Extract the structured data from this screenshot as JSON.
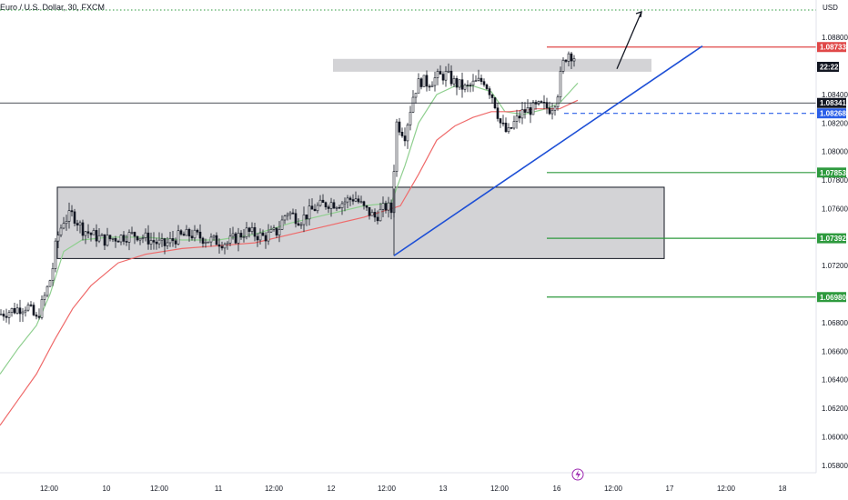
{
  "header": {
    "title": "Euro / U.S. Dollar, 30, FXCM"
  },
  "axis": {
    "currency": "USD",
    "clock": "22:22"
  },
  "colors": {
    "up": "#131722",
    "down": "#131722",
    "ma_fast": "#8fcf8f",
    "ma_slow": "#ef6a6a",
    "resistance": "#e04848",
    "target": "#2e9a3e",
    "trendline": "#1d4fd6",
    "current": "#131722",
    "dashed": "#2a5ee8",
    "zone_fill": "#d3d3d6",
    "zone_border": "#131722"
  },
  "chart_data": {
    "type": "candlestick",
    "title": "Euro / U.S. Dollar, 30, FXCM",
    "ylim": [
      1.0578,
      1.0898
    ],
    "y_ticks": [
      "1.08800",
      "1.08400",
      "1.08200",
      "1.08000",
      "1.07800",
      "1.07600",
      "1.07200",
      "1.06800",
      "1.06600",
      "1.06400",
      "1.06200",
      "1.06000",
      "1.05800"
    ],
    "x_ticks": [
      "12:00",
      "10",
      "12:00",
      "11",
      "12:00",
      "12",
      "12:00",
      "13",
      "12:00",
      "16",
      "12:00",
      "17",
      "12:00",
      "18"
    ],
    "price_levels": [
      {
        "price": 1.08733,
        "label": "1.08733",
        "kind": "resistance"
      },
      {
        "price": 1.08341,
        "label": "1.08341",
        "kind": "current"
      },
      {
        "price": 1.08268,
        "label": "1.08268",
        "kind": "dashed"
      },
      {
        "price": 1.07853,
        "label": "1.07853",
        "kind": "target"
      },
      {
        "price": 1.07392,
        "label": "1.07392",
        "kind": "target"
      },
      {
        "price": 1.0698,
        "label": "1.06980",
        "kind": "target"
      }
    ],
    "zones": [
      {
        "name": "range-box",
        "x_start": 63,
        "x_end": 730,
        "y_top": 1.0775,
        "y_bottom": 1.0725
      },
      {
        "name": "supply-zone",
        "x_start": 366,
        "x_end": 716,
        "y_top": 1.0865,
        "y_bottom": 1.0856
      }
    ],
    "trendline": {
      "x1": 433,
      "y1": 1.0727,
      "x2": 772,
      "y2": 1.0874
    },
    "projection": {
      "x1": 678,
      "y1": 1.0858,
      "x2": 705,
      "y2": 1.0898
    },
    "candle_path": [
      [
        0,
        1.0686
      ],
      [
        10,
        1.0688
      ],
      [
        20,
        1.069
      ],
      [
        30,
        1.0692
      ],
      [
        40,
        1.0682
      ],
      [
        50,
        1.07
      ],
      [
        57,
        1.0714
      ],
      [
        62,
        1.0738
      ],
      [
        70,
        1.0752
      ],
      [
        80,
        1.0756
      ],
      [
        90,
        1.0746
      ],
      [
        100,
        1.0742
      ],
      [
        115,
        1.0738
      ],
      [
        130,
        1.074
      ],
      [
        150,
        1.0742
      ],
      [
        165,
        1.0738
      ],
      [
        180,
        1.0734
      ],
      [
        195,
        1.074
      ],
      [
        210,
        1.0742
      ],
      [
        230,
        1.0738
      ],
      [
        250,
        1.0736
      ],
      [
        270,
        1.0744
      ],
      [
        290,
        1.074
      ],
      [
        305,
        1.0744
      ],
      [
        315,
        1.0758
      ],
      [
        330,
        1.0752
      ],
      [
        345,
        1.076
      ],
      [
        360,
        1.0764
      ],
      [
        375,
        1.0764
      ],
      [
        390,
        1.0768
      ],
      [
        400,
        1.076
      ],
      [
        412,
        1.0754
      ],
      [
        425,
        1.0762
      ],
      [
        430,
        1.0758
      ],
      [
        436,
        1.082
      ],
      [
        445,
        1.0812
      ],
      [
        455,
        1.0842
      ],
      [
        462,
        1.085
      ],
      [
        470,
        1.0848
      ],
      [
        480,
        1.0852
      ],
      [
        490,
        1.0854
      ],
      [
        500,
        1.0848
      ],
      [
        512,
        1.0844
      ],
      [
        522,
        1.0848
      ],
      [
        532,
        1.085
      ],
      [
        542,
        1.0838
      ],
      [
        550,
        1.082
      ],
      [
        558,
        1.0812
      ],
      [
        565,
        1.082
      ],
      [
        575,
        1.0828
      ],
      [
        585,
        1.083
      ],
      [
        595,
        1.0832
      ],
      [
        605,
        1.083
      ],
      [
        612,
        1.0838
      ],
      [
        618,
        1.086
      ],
      [
        624,
        1.087
      ],
      [
        632,
        1.0866
      ]
    ],
    "ma_fast_path": [
      [
        0,
        1.0644
      ],
      [
        20,
        1.0662
      ],
      [
        40,
        1.0678
      ],
      [
        55,
        1.07
      ],
      [
        70,
        1.073
      ],
      [
        90,
        1.0738
      ],
      [
        120,
        1.074
      ],
      [
        160,
        1.074
      ],
      [
        200,
        1.0738
      ],
      [
        240,
        1.0738
      ],
      [
        280,
        1.0742
      ],
      [
        320,
        1.075
      ],
      [
        360,
        1.0756
      ],
      [
        400,
        1.0762
      ],
      [
        430,
        1.0764
      ],
      [
        445,
        1.079
      ],
      [
        460,
        1.082
      ],
      [
        480,
        1.084
      ],
      [
        500,
        1.0846
      ],
      [
        520,
        1.0846
      ],
      [
        540,
        1.0842
      ],
      [
        555,
        1.0828
      ],
      [
        575,
        1.0826
      ],
      [
        600,
        1.083
      ],
      [
        615,
        1.0834
      ],
      [
        635,
        1.0848
      ]
    ],
    "ma_slow_path": [
      [
        0,
        1.0608
      ],
      [
        20,
        1.0626
      ],
      [
        40,
        1.0644
      ],
      [
        60,
        1.0668
      ],
      [
        80,
        1.069
      ],
      [
        100,
        1.0706
      ],
      [
        130,
        1.0722
      ],
      [
        160,
        1.0728
      ],
      [
        200,
        1.0732
      ],
      [
        240,
        1.0734
      ],
      [
        280,
        1.0736
      ],
      [
        320,
        1.0742
      ],
      [
        360,
        1.0748
      ],
      [
        400,
        1.0754
      ],
      [
        440,
        1.0762
      ],
      [
        460,
        1.0784
      ],
      [
        480,
        1.0808
      ],
      [
        500,
        1.0818
      ],
      [
        520,
        1.0824
      ],
      [
        540,
        1.0828
      ],
      [
        560,
        1.0828
      ],
      [
        590,
        1.083
      ],
      [
        615,
        1.083
      ],
      [
        635,
        1.0836
      ]
    ]
  }
}
